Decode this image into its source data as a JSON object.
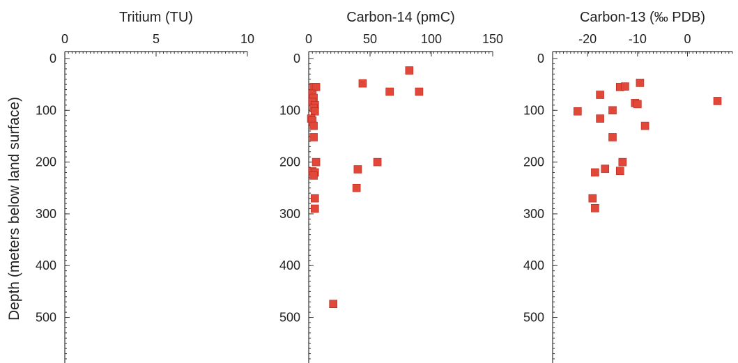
{
  "chart_data": [
    {
      "type": "scatter",
      "title": "Tritium (TU)",
      "xlim": [
        0,
        10
      ],
      "x_ticks": [
        0,
        5,
        10
      ],
      "ylim": [
        0,
        580
      ],
      "y_ticks": [
        0,
        100,
        200,
        300,
        400,
        500
      ],
      "ylabel": "Depth (meters below land surface)",
      "marker_color": "#e2483a",
      "points": []
    },
    {
      "type": "scatter",
      "title": "Carbon-14 (pmC)",
      "xlim": [
        0,
        150
      ],
      "x_ticks": [
        0,
        50,
        100,
        150
      ],
      "ylim": [
        0,
        580
      ],
      "y_ticks": [
        0,
        100,
        200,
        300,
        400,
        500
      ],
      "marker_color": "#e2483a",
      "points": [
        {
          "x": 82,
          "y": 23
        },
        {
          "x": 44,
          "y": 48
        },
        {
          "x": 66,
          "y": 64
        },
        {
          "x": 90,
          "y": 64
        },
        {
          "x": 4,
          "y": 55
        },
        {
          "x": 6,
          "y": 55
        },
        {
          "x": 3,
          "y": 68
        },
        {
          "x": 4,
          "y": 76
        },
        {
          "x": 3,
          "y": 84
        },
        {
          "x": 5,
          "y": 90
        },
        {
          "x": 4,
          "y": 96
        },
        {
          "x": 5,
          "y": 102
        },
        {
          "x": 2,
          "y": 116
        },
        {
          "x": 3,
          "y": 120
        },
        {
          "x": 4,
          "y": 130
        },
        {
          "x": 4,
          "y": 152
        },
        {
          "x": 56,
          "y": 200
        },
        {
          "x": 6,
          "y": 200
        },
        {
          "x": 40,
          "y": 214
        },
        {
          "x": 3,
          "y": 218
        },
        {
          "x": 5,
          "y": 220
        },
        {
          "x": 4,
          "y": 226
        },
        {
          "x": 39,
          "y": 250
        },
        {
          "x": 5,
          "y": 270
        },
        {
          "x": 5,
          "y": 290
        },
        {
          "x": 20,
          "y": 474
        }
      ]
    },
    {
      "type": "scatter",
      "title": "Carbon-13 (‰ PDB)",
      "xlim": [
        -27,
        9
      ],
      "x_ticks": [
        -20,
        -10,
        0
      ],
      "ylim": [
        0,
        580
      ],
      "y_ticks": [
        0,
        100,
        200,
        300,
        400,
        500
      ],
      "marker_color": "#e2483a",
      "points": [
        {
          "x": 6,
          "y": 82
        },
        {
          "x": -9.5,
          "y": 47
        },
        {
          "x": -13.5,
          "y": 55
        },
        {
          "x": -12.5,
          "y": 54
        },
        {
          "x": -17.5,
          "y": 70
        },
        {
          "x": -10.5,
          "y": 86
        },
        {
          "x": -10,
          "y": 88
        },
        {
          "x": -22,
          "y": 102
        },
        {
          "x": -15,
          "y": 100
        },
        {
          "x": -17.5,
          "y": 116
        },
        {
          "x": -8.5,
          "y": 130
        },
        {
          "x": -15,
          "y": 152
        },
        {
          "x": -13,
          "y": 200
        },
        {
          "x": -16.5,
          "y": 213
        },
        {
          "x": -13.5,
          "y": 217
        },
        {
          "x": -18.5,
          "y": 220
        },
        {
          "x": -19,
          "y": 270
        },
        {
          "x": -18.5,
          "y": 289
        }
      ]
    }
  ]
}
